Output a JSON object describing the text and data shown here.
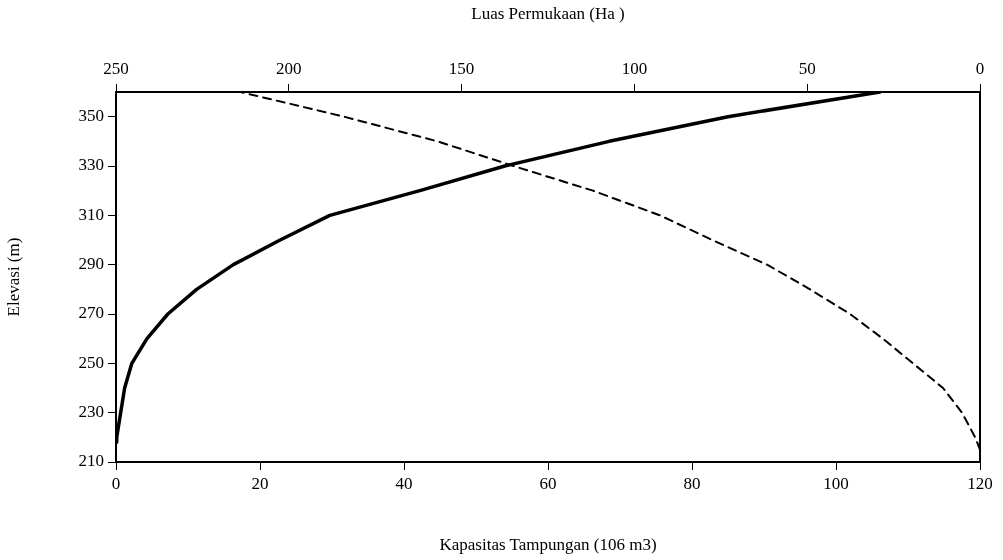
{
  "chart_data": {
    "type": "line",
    "xlabel": "Kapasitas Tampungan (106 m3)",
    "x2label": "Luas Permukaan (Ha )",
    "ylabel": "Elevasi (m)",
    "xlim": [
      0,
      120
    ],
    "xticks": [
      0,
      20,
      40,
      60,
      80,
      100,
      120
    ],
    "x2lim": [
      250,
      0
    ],
    "x2ticks": [
      250,
      200,
      150,
      100,
      50,
      0
    ],
    "ylim": [
      210,
      360
    ],
    "yticks": [
      210,
      230,
      250,
      270,
      290,
      310,
      330,
      350
    ],
    "marker": "none",
    "series": [
      {
        "color": "#000000",
        "line_style": "solid",
        "x": [
          0,
          0.1,
          1.2,
          2.2,
          4.3,
          7.2,
          11.2,
          16.3,
          22.8,
          29.7,
          42.2,
          54,
          68.5,
          85,
          106.1
        ],
        "values": [
          218,
          220,
          240,
          250,
          260,
          270,
          280,
          290,
          300,
          310,
          320,
          330,
          340,
          350,
          360
        ]
      },
      {
        "color": "#000000",
        "line_style": "dashed",
        "axis": "x2",
        "x": [
          0,
          1.4,
          5.2,
          10.7,
          19.4,
          28.1,
          37.6,
          49.2,
          61.6,
          77.5,
          92.6,
          112,
          135,
          157,
          184,
          214
        ],
        "values": [
          215,
          220,
          230,
          240,
          250,
          260,
          270,
          280,
          290,
          300,
          310,
          320,
          330,
          340,
          350,
          360
        ]
      }
    ]
  }
}
